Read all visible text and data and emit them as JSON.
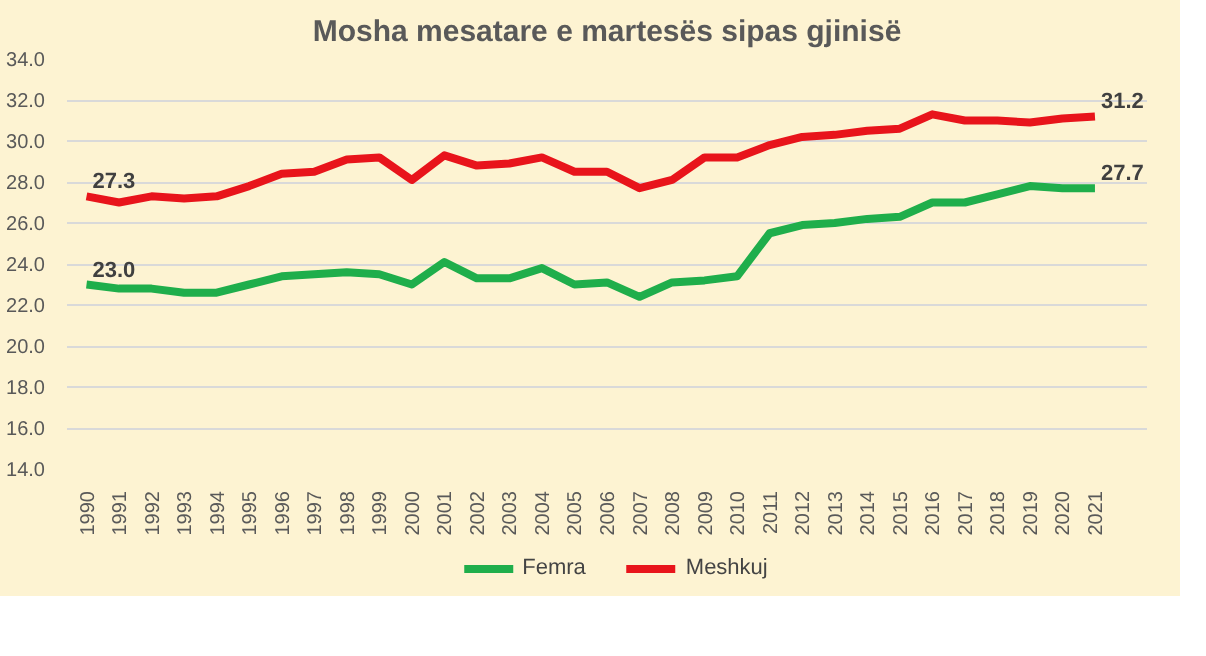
{
  "chart_data": {
    "type": "line",
    "title": "Mosha mesatare e martesës sipas gjinisë",
    "categories": [
      "1990",
      "1991",
      "1992",
      "1993",
      "1994",
      "1995",
      "1996",
      "1997",
      "1998",
      "1999",
      "2000",
      "2001",
      "2002",
      "2003",
      "2004",
      "2005",
      "2006",
      "2007",
      "2008",
      "2009",
      "2010",
      "2011",
      "2012",
      "2013",
      "2014",
      "2015",
      "2016",
      "2017",
      "2018",
      "2019",
      "2020",
      "2021"
    ],
    "series": [
      {
        "name": "Femra",
        "color": "#1fae4b",
        "values": [
          23.0,
          22.8,
          22.8,
          22.6,
          22.6,
          23.0,
          23.4,
          23.5,
          23.6,
          23.5,
          23.0,
          24.1,
          23.3,
          23.3,
          23.8,
          23.0,
          23.1,
          22.4,
          23.1,
          23.2,
          23.4,
          25.5,
          25.9,
          26.0,
          26.2,
          26.3,
          27.0,
          27.0,
          27.4,
          27.8,
          27.7,
          27.7
        ],
        "value_labels": [
          "23.0",
          null,
          null,
          null,
          null,
          null,
          null,
          null,
          null,
          null,
          null,
          null,
          null,
          null,
          null,
          null,
          null,
          null,
          null,
          null,
          null,
          null,
          null,
          null,
          null,
          null,
          null,
          null,
          null,
          null,
          null,
          "27.7"
        ]
      },
      {
        "name": "Meshkuj",
        "color": "#e8141b",
        "values": [
          27.3,
          27.0,
          27.3,
          27.2,
          27.3,
          27.8,
          28.4,
          28.5,
          29.1,
          29.2,
          28.1,
          29.3,
          28.8,
          28.9,
          29.2,
          28.5,
          28.5,
          27.7,
          28.1,
          29.2,
          29.2,
          29.8,
          30.2,
          30.3,
          30.5,
          30.6,
          31.3,
          31.0,
          31.0,
          30.9,
          31.1,
          31.2
        ],
        "value_labels": [
          "27.3",
          null,
          null,
          null,
          null,
          null,
          null,
          null,
          null,
          null,
          null,
          null,
          null,
          null,
          null,
          null,
          null,
          null,
          null,
          null,
          null,
          null,
          null,
          null,
          null,
          null,
          null,
          null,
          null,
          null,
          null,
          "31.2"
        ]
      }
    ],
    "ylim": [
      14.0,
      34.0
    ],
    "yticks": [
      {
        "value": 14,
        "label": "14.0"
      },
      {
        "value": 16,
        "label": "16.0"
      },
      {
        "value": 18,
        "label": "18.0"
      },
      {
        "value": 20,
        "label": "20.0"
      },
      {
        "value": 22,
        "label": "22.0"
      },
      {
        "value": 24,
        "label": "24.0"
      },
      {
        "value": 26,
        "label": "26.0"
      },
      {
        "value": 28,
        "label": "28.0"
      },
      {
        "value": 30,
        "label": "30.0"
      },
      {
        "value": 32,
        "label": "32.0"
      },
      {
        "value": 34,
        "label": "34.0"
      }
    ],
    "grid": "y",
    "legend": "bottom",
    "marker": "none",
    "line_style": "solid"
  }
}
